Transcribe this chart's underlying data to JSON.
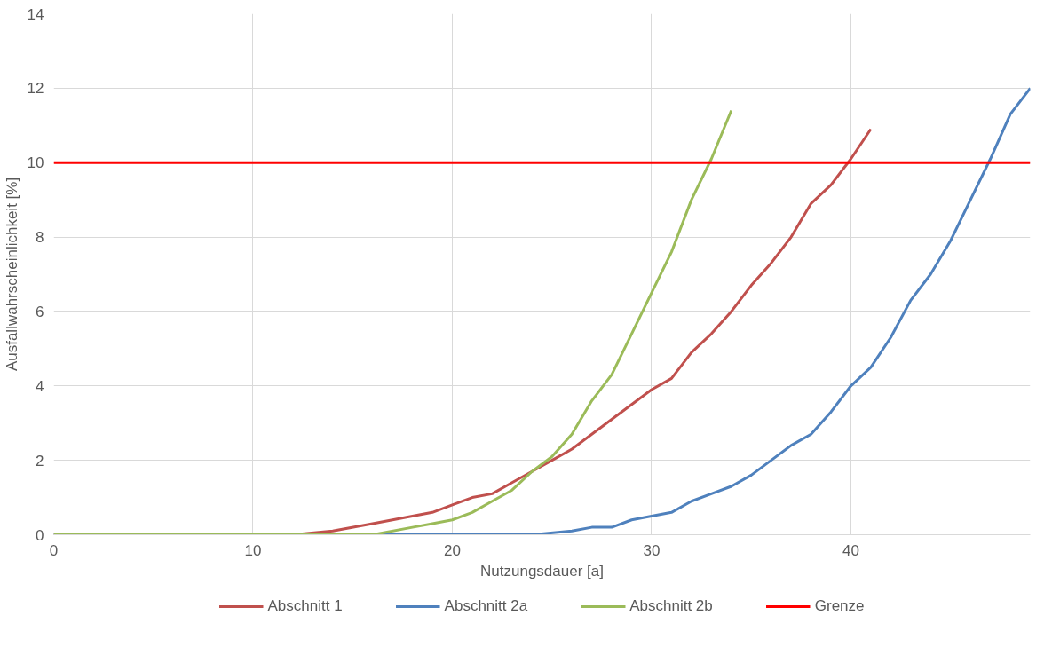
{
  "chart_data": {
    "type": "line",
    "xlabel": "Nutzungsdauer [a]",
    "ylabel": "Ausfallwahrscheinlichkeit [%]",
    "xlim": [
      0,
      49
    ],
    "ylim": [
      0,
      14
    ],
    "xticks": [
      0,
      10,
      20,
      30,
      40
    ],
    "yticks": [
      0,
      2,
      4,
      6,
      8,
      10,
      12,
      14
    ],
    "grid": true,
    "legend": "bottom",
    "line_style": "solid",
    "marker": "none",
    "series": [
      {
        "name": "Abschnitt 1",
        "color": "#c0504d",
        "x": [
          0,
          12,
          14,
          16,
          18,
          19,
          20,
          21,
          22,
          23,
          24,
          25,
          26,
          27,
          28,
          29,
          30,
          31,
          32,
          33,
          34,
          35,
          36,
          37,
          38,
          39,
          40,
          41
        ],
        "values": [
          0,
          0,
          0.1,
          0.3,
          0.5,
          0.6,
          0.8,
          1.0,
          1.1,
          1.4,
          1.7,
          2.0,
          2.3,
          2.7,
          3.1,
          3.5,
          3.9,
          4.2,
          4.9,
          5.4,
          6.0,
          6.7,
          7.3,
          8.0,
          8.9,
          9.4,
          10.1,
          10.9
        ]
      },
      {
        "name": "Abschnitt 2a",
        "color": "#4f81bd",
        "x": [
          0,
          24,
          26,
          27,
          28,
          29,
          30,
          31,
          32,
          33,
          34,
          35,
          36,
          37,
          38,
          39,
          40,
          41,
          42,
          43,
          44,
          45,
          46,
          47,
          48,
          49
        ],
        "values": [
          0,
          0,
          0.1,
          0.2,
          0.2,
          0.4,
          0.5,
          0.6,
          0.9,
          1.1,
          1.3,
          1.6,
          2.0,
          2.4,
          2.7,
          3.3,
          4.0,
          4.5,
          5.3,
          6.3,
          7.0,
          7.9,
          9.0,
          10.1,
          11.3,
          12.0
        ]
      },
      {
        "name": "Abschnitt 2b",
        "color": "#9bbb59",
        "x": [
          0,
          16,
          18,
          19,
          20,
          21,
          22,
          23,
          24,
          25,
          26,
          27,
          28,
          29,
          30,
          31,
          32,
          33,
          34
        ],
        "values": [
          0,
          0,
          0.2,
          0.3,
          0.4,
          0.6,
          0.9,
          1.2,
          1.7,
          2.1,
          2.7,
          3.6,
          4.3,
          5.4,
          6.5,
          7.6,
          9.0,
          10.1,
          11.4
        ]
      },
      {
        "name": "Grenze",
        "color": "#ff0000",
        "x": [
          0,
          49
        ],
        "values": [
          10,
          10
        ]
      }
    ]
  }
}
